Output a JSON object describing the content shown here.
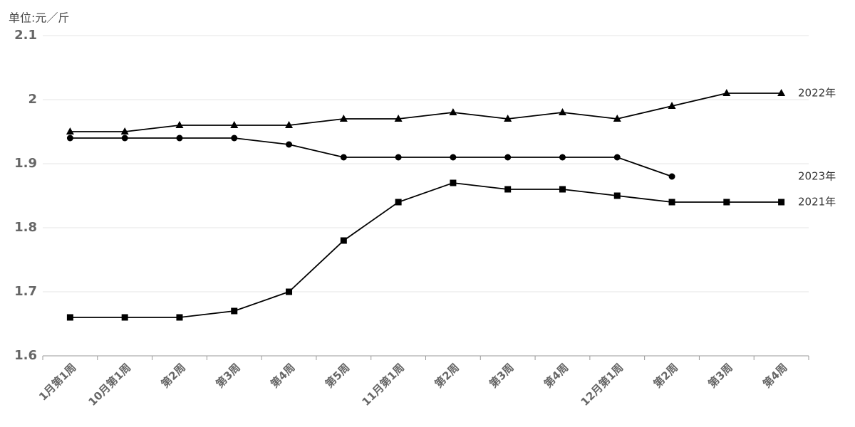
{
  "chart_data": {
    "type": "line",
    "y_label": "单位:元／斤",
    "categories": [
      "1月第1周",
      "10月第1周",
      "第2周",
      "第3周",
      "第4周",
      "第5周",
      "11月第1周",
      "第2周",
      "第3周",
      "第4周",
      "12月第1周",
      "第2周",
      "第3周",
      "第4周"
    ],
    "series": [
      {
        "name": "2022年",
        "color": "#000000",
        "marker": "triangle",
        "values": [
          1.95,
          1.95,
          1.96,
          1.96,
          1.96,
          1.97,
          1.97,
          1.98,
          1.97,
          1.98,
          1.97,
          1.99,
          2.01,
          2.01
        ]
      },
      {
        "name": "2023年",
        "color": "#000000",
        "marker": "circle",
        "values": [
          1.94,
          1.94,
          1.94,
          1.94,
          1.93,
          1.91,
          1.91,
          1.91,
          1.91,
          1.91,
          1.91,
          1.88,
          null,
          null
        ]
      },
      {
        "name": "2021年",
        "color": "#000000",
        "marker": "square",
        "values": [
          1.66,
          1.66,
          1.66,
          1.67,
          1.7,
          1.78,
          1.84,
          1.87,
          1.86,
          1.86,
          1.85,
          1.84,
          1.84,
          1.84
        ]
      }
    ],
    "ylim": [
      1.6,
      2.1
    ],
    "yticks": [
      1.6,
      1.7,
      1.8,
      1.9,
      2,
      2.1
    ],
    "grid": true
  }
}
